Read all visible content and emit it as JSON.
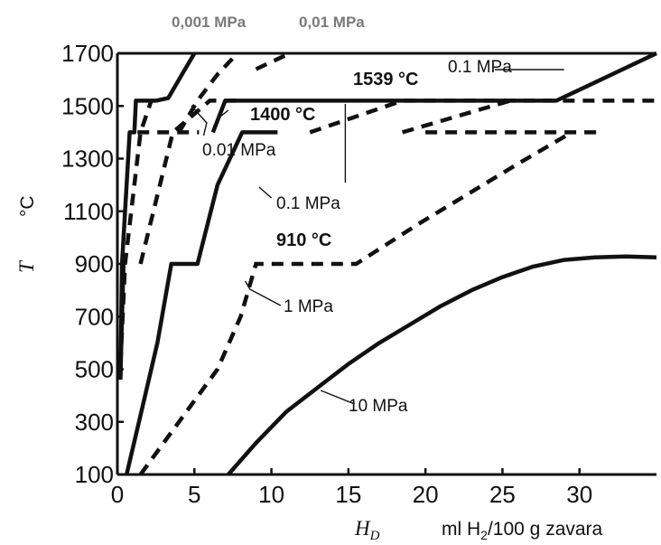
{
  "chart_data": {
    "type": "line",
    "top_annotations": [
      "0,001 MPa",
      "0,01 MPa"
    ],
    "ylabel_symbol": "T",
    "ylabel_unit": "°C",
    "xlabel_symbol_main": "H",
    "xlabel_symbol_sub": "D",
    "xlabel_unit_parts": [
      "ml H",
      "2",
      "/100 g zavara"
    ],
    "xlim": [
      0,
      35
    ],
    "ylim": [
      100,
      1700
    ],
    "x_ticks": [
      0,
      5,
      10,
      15,
      20,
      25,
      30
    ],
    "y_ticks": [
      100,
      300,
      500,
      700,
      900,
      1100,
      1300,
      1500,
      1700
    ],
    "annotations": [
      "1539 °C",
      "1400 °C",
      "910 °C",
      "0.1 MPa",
      "0.01 MPa",
      "0.1 MPa",
      "1 MPa",
      "10 MPa"
    ],
    "series": [
      {
        "style": "solid",
        "points": [
          [
            0.2,
            460
          ],
          [
            0.3,
            900
          ],
          [
            0.8,
            1400
          ],
          [
            1.1,
            1400
          ],
          [
            1.2,
            1520
          ],
          [
            2.5,
            1520
          ],
          [
            3.3,
            1530
          ],
          [
            4.2,
            1620
          ],
          [
            5,
            1700
          ]
        ]
      },
      {
        "style": "dashed",
        "points": [
          [
            0.2,
            520
          ],
          [
            0.5,
            900
          ],
          [
            1.5,
            1400
          ],
          [
            2.2,
            1520
          ]
        ]
      },
      {
        "style": "solid",
        "points": [
          [
            0.2,
            470
          ],
          [
            0.3,
            700
          ],
          [
            0.4,
            900
          ]
        ]
      },
      {
        "style": "dashed",
        "points": [
          [
            4,
            1400
          ],
          [
            5.2,
            1520
          ],
          [
            6.5,
            1620
          ],
          [
            7.8,
            1700
          ]
        ]
      },
      {
        "style": "dashed",
        "points": [
          [
            1.3,
            1400
          ],
          [
            5.3,
            1400
          ]
        ]
      },
      {
        "style": "dashed",
        "points": [
          [
            1.5,
            900
          ],
          [
            3.6,
            1400
          ],
          [
            6,
            1520
          ],
          [
            7.8,
            1520
          ]
        ]
      },
      {
        "style": "solid",
        "points": [
          [
            0.6,
            100
          ],
          [
            1.4,
            300
          ],
          [
            2.6,
            600
          ],
          [
            3.5,
            900
          ],
          [
            5.2,
            900
          ],
          [
            6.5,
            1200
          ],
          [
            8.1,
            1400
          ],
          [
            10.4,
            1400
          ]
        ]
      },
      {
        "style": "solid",
        "points": [
          [
            6.2,
            1400
          ],
          [
            7,
            1520
          ],
          [
            28.5,
            1520
          ],
          [
            35,
            1700
          ]
        ]
      },
      {
        "style": "dashed",
        "points": [
          [
            1.5,
            100
          ],
          [
            4,
            300
          ],
          [
            6.5,
            500
          ],
          [
            8,
            700
          ],
          [
            9,
            900
          ],
          [
            15.5,
            900
          ],
          [
            19.5,
            1050
          ],
          [
            26,
            1280
          ],
          [
            29.5,
            1400
          ]
        ]
      },
      {
        "style": "dashed",
        "points": [
          [
            12.5,
            1400
          ],
          [
            18.5,
            1520
          ],
          [
            29,
            1520
          ],
          [
            35,
            1520
          ]
        ]
      },
      {
        "style": "dashed",
        "points": [
          [
            20,
            1400
          ],
          [
            31.5,
            1400
          ]
        ]
      },
      {
        "style": "dashed",
        "points": [
          [
            18.5,
            1400
          ],
          [
            25.5,
            1520
          ]
        ]
      },
      {
        "style": "dashed",
        "points": [
          [
            9,
            1640
          ],
          [
            11.2,
            1700
          ]
        ]
      },
      {
        "style": "solid",
        "points": [
          [
            7.2,
            100
          ],
          [
            9,
            220
          ],
          [
            11,
            340
          ],
          [
            13,
            430
          ],
          [
            15,
            520
          ],
          [
            17,
            600
          ],
          [
            19,
            670
          ],
          [
            21,
            740
          ],
          [
            23,
            800
          ],
          [
            25,
            850
          ],
          [
            27,
            890
          ],
          [
            29,
            915
          ],
          [
            31,
            925
          ],
          [
            33,
            928
          ],
          [
            35,
            925
          ]
        ]
      }
    ]
  }
}
